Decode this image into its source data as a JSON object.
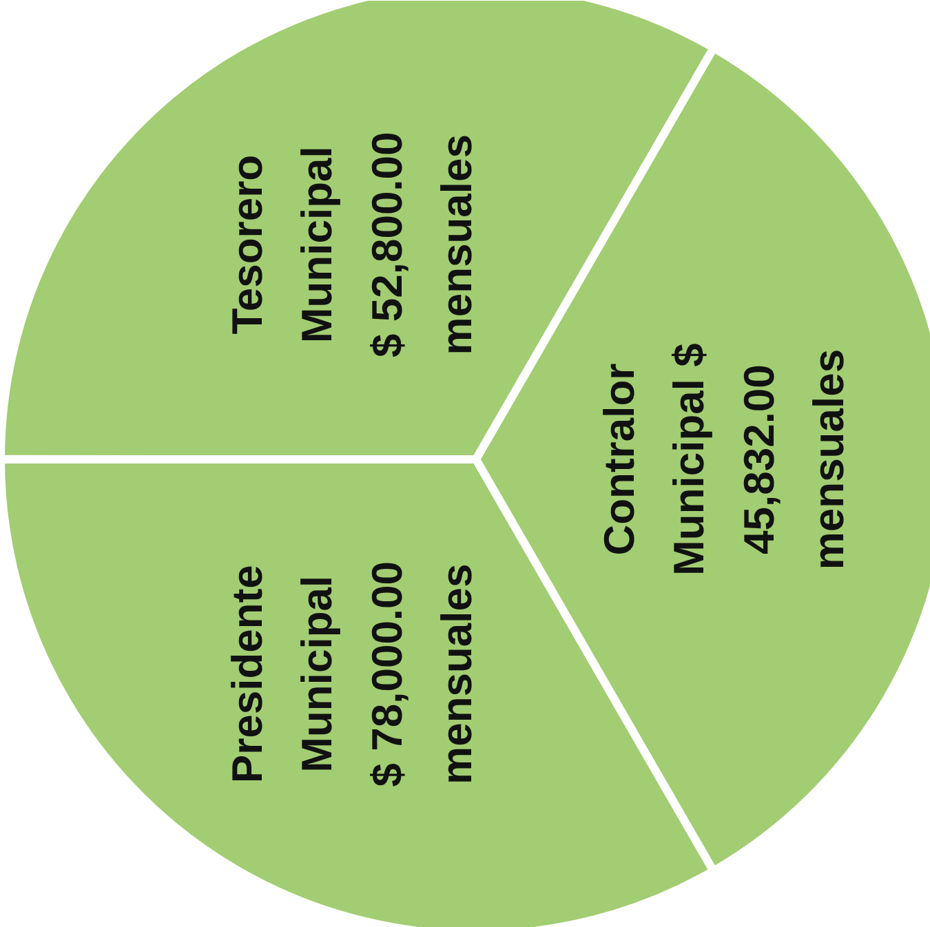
{
  "chart_data": {
    "type": "pie",
    "categories": [
      "Tesorero\nMunicipal\n$ 52,800.00\nmensuales",
      "Presidente\nMunicipal\n$ 78,000.00\nmensuales",
      "Contralor\nMunicipal $\n45,832.00\nmensuales"
    ],
    "values": [
      33.33,
      33.33,
      33.34
    ],
    "colors": [
      "#a2cd72",
      "#a2cd72",
      "#a2cd72"
    ]
  }
}
